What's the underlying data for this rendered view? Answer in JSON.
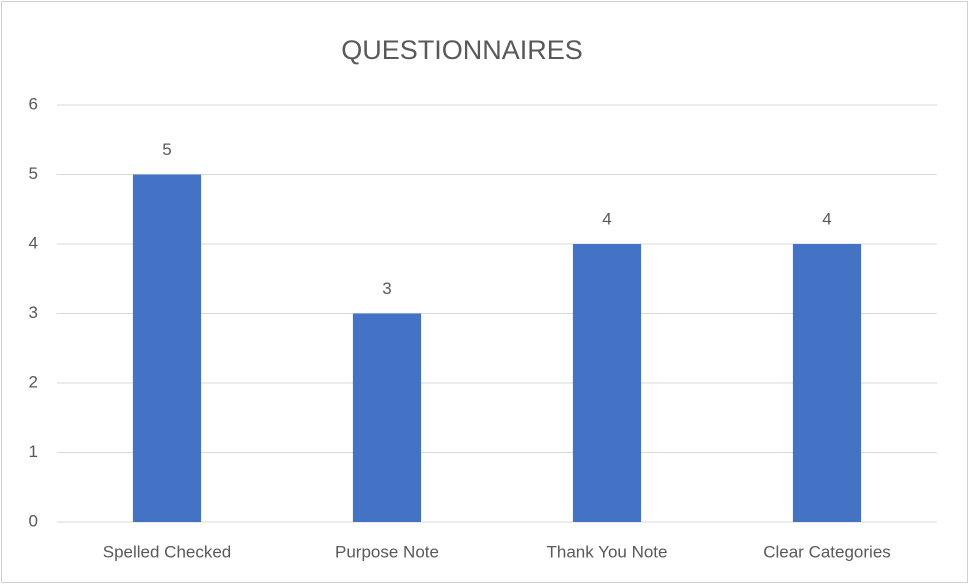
{
  "chart_data": {
    "type": "bar",
    "title": "QUESTIONNAIRES",
    "categories": [
      "Spelled Checked",
      "Purpose Note",
      "Thank You Note",
      "Clear Categories"
    ],
    "values": [
      5,
      3,
      4,
      4
    ],
    "color": "#4472c4",
    "ylim": [
      0,
      6
    ],
    "yticks": [
      0,
      1,
      2,
      3,
      4,
      5,
      6
    ],
    "grid": true,
    "data_labels": true
  }
}
